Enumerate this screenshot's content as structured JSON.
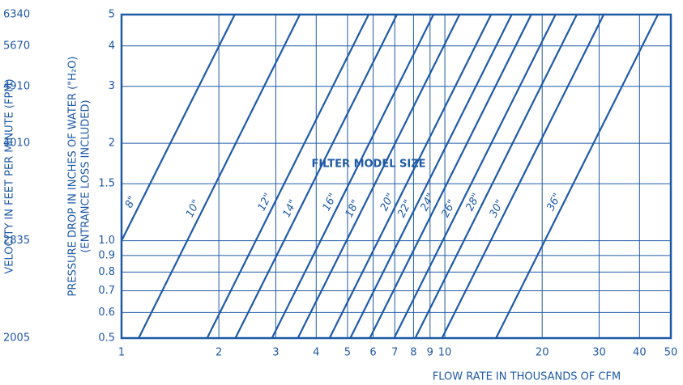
{
  "chart_data": {
    "type": "line",
    "xlabel": "FLOW RATE IN THOUSANDS OF CFM",
    "ylabel": "PRESSURE DROP IN INCHES OF WATER (\"H₂O)",
    "ylabel_note": "(ENTRANCE LOSS INCLUDED)",
    "y2label": "VELOCITY IN FEET PER MINUTE (FPM)",
    "annotation": "FILTER MODEL SIZE",
    "xscale": "log",
    "yscale": "log",
    "y2scale": "log",
    "grid": true,
    "color": "#1f5aa6",
    "xlim": [
      1,
      50
    ],
    "xticks": [
      1,
      2,
      3,
      4,
      5,
      6,
      7,
      8,
      9,
      10,
      20,
      30,
      40,
      50
    ],
    "ylim": [
      0.5,
      5
    ],
    "yticks": [
      0.5,
      0.6,
      0.7,
      0.8,
      0.9,
      {
        "value": 1,
        "label": "1.0"
      },
      1.5,
      2,
      3,
      4,
      5
    ],
    "y2lim": [
      2005,
      6340
    ],
    "y2ticks": [
      2005,
      2835,
      4010,
      4910,
      5670,
      6340
    ],
    "series": [
      {
        "name": "8\"",
        "x": [
          1,
          2.24
        ],
        "values": [
          1,
          5
        ]
      },
      {
        "name": "10\"",
        "x": [
          1.13,
          3.56
        ],
        "values": [
          0.5,
          5
        ]
      },
      {
        "name": "12\"",
        "x": [
          1.84,
          5.81
        ],
        "values": [
          0.5,
          5
        ]
      },
      {
        "name": "14\"",
        "x": [
          2.25,
          7.11
        ],
        "values": [
          0.5,
          5
        ]
      },
      {
        "name": "16\"",
        "x": [
          2.92,
          9.22
        ],
        "values": [
          0.5,
          5
        ]
      },
      {
        "name": "18\"",
        "x": [
          3.51,
          11.1
        ],
        "values": [
          0.5,
          5
        ]
      },
      {
        "name": "20\"",
        "x": [
          4.4,
          13.9
        ],
        "values": [
          0.5,
          5
        ]
      },
      {
        "name": "22\"",
        "x": [
          5.1,
          16.1
        ],
        "values": [
          0.5,
          5
        ]
      },
      {
        "name": "24\"",
        "x": [
          5.86,
          18.5
        ],
        "values": [
          0.5,
          5
        ]
      },
      {
        "name": "26\"",
        "x": [
          6.97,
          22
        ],
        "values": [
          0.5,
          5
        ]
      },
      {
        "name": "28\"",
        "x": [
          8.1,
          25.6
        ],
        "values": [
          0.5,
          5
        ]
      },
      {
        "name": "30\"",
        "x": [
          9.8,
          31
        ],
        "values": [
          0.5,
          5
        ]
      },
      {
        "name": "36\"",
        "x": [
          14.4,
          45.6
        ],
        "values": [
          0.5,
          5
        ]
      }
    ]
  }
}
